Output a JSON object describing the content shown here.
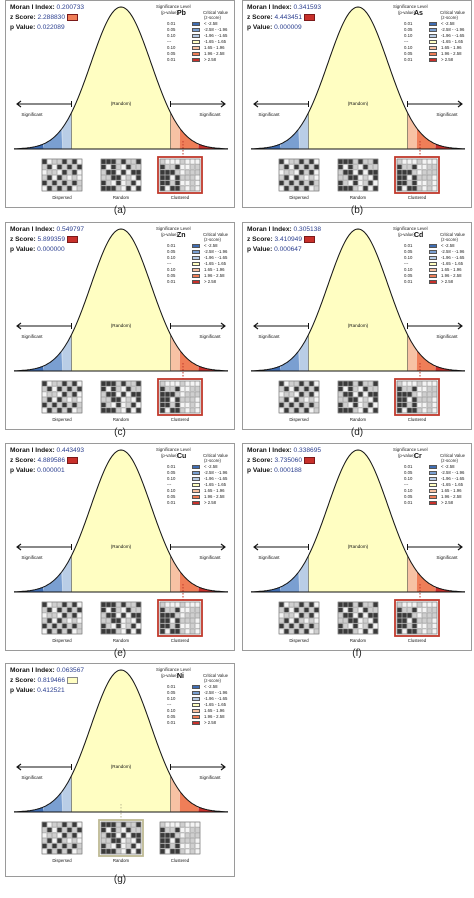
{
  "legend": {
    "significance_header_1": "Significance Level",
    "significance_header_2": "(p-value)",
    "critical_header_1": "Critical Value",
    "critical_header_2": "(z-score)",
    "rows": [
      {
        "p": "0.01",
        "z": "< -2.58",
        "color": "#3f6db3"
      },
      {
        "p": "0.05",
        "z": "-2.58 - -1.96",
        "color": "#7a9fd1"
      },
      {
        "p": "0.10",
        "z": "-1.96 - -1.65",
        "color": "#b9cde6"
      },
      {
        "p": "---",
        "z": "-1.65 - 1.65",
        "color": "#fffec2"
      },
      {
        "p": "0.10",
        "z": "1.65 - 1.96",
        "color": "#f7c2a4"
      },
      {
        "p": "0.05",
        "z": "1.96 - 2.58",
        "color": "#ef7e58"
      },
      {
        "p": "0.01",
        "z": "> 2.58",
        "color": "#c8302b"
      }
    ]
  },
  "labels": {
    "significant": "Significant",
    "random": "(Random)",
    "dispersed": "Dispersed",
    "random_pattern": "Random",
    "clustered": "Clustered",
    "moran_label": "Moran I Index:",
    "z_label": "z Score:",
    "p_label": "p Value:"
  },
  "colors": {
    "curve_fill": "#fdfcc0",
    "dispersed_blue": "#3f6db3",
    "clustered_red": "#c8302b",
    "highlight_red": "#c0392b",
    "highlight_neutral": "#bdb993"
  },
  "panels": [
    {
      "caption": "(a)",
      "metal": "Pb",
      "moran": "0.200733",
      "z": "2.288830",
      "p": "0.022089",
      "result": "clustered",
      "z_color": "#ef7e58"
    },
    {
      "caption": "(b)",
      "metal": "As",
      "moran": "0.341593",
      "z": "4.443451",
      "p": "0.000009",
      "result": "clustered",
      "z_color": "#c8302b"
    },
    {
      "caption": "(c)",
      "metal": "Zn",
      "moran": "0.549797",
      "z": "5.899359",
      "p": "0.000000",
      "result": "clustered",
      "z_color": "#c8302b"
    },
    {
      "caption": "(d)",
      "metal": "Cd",
      "moran": "0.305138",
      "z": "3.410949",
      "p": "0.000647",
      "result": "clustered",
      "z_color": "#c8302b"
    },
    {
      "caption": "(e)",
      "metal": "Cu",
      "moran": "0.443493",
      "z": "4.889586",
      "p": "0.000001",
      "result": "clustered",
      "z_color": "#c8302b"
    },
    {
      "caption": "(f)",
      "metal": "Cr",
      "moran": "0.338695",
      "z": "3.735060",
      "p": "0.000188",
      "result": "clustered",
      "z_color": "#c8302b"
    },
    {
      "caption": "(g)",
      "metal": "Ni",
      "moran": "0.063567",
      "z": "0.819466",
      "p": "0.412521",
      "result": "random",
      "z_color": "#fffec2"
    }
  ]
}
